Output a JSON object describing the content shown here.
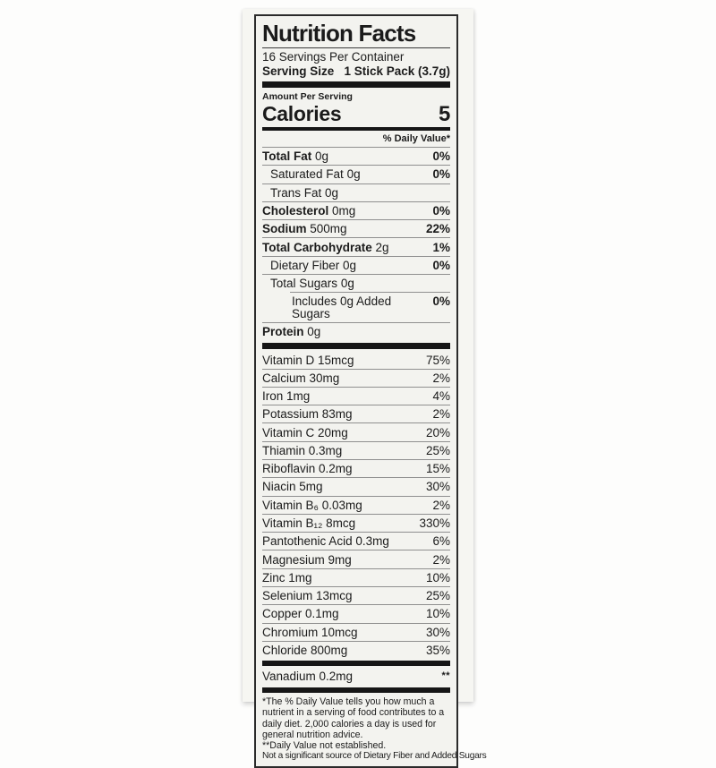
{
  "label": {
    "title": "Nutrition Facts",
    "servings_per_container": "16 Servings Per Container",
    "serving_size_label": "Serving Size",
    "serving_size_value": "1 Stick Pack (3.7g)",
    "amount_per_serving": "Amount Per Serving",
    "calories_label": "Calories",
    "calories_value": "5",
    "daily_value_header": "% Daily Value*",
    "main_rows": [
      {
        "name": "Total Fat",
        "amount": "0g",
        "dv": "0%"
      },
      {
        "name": "Saturated Fat",
        "amount": "0g",
        "dv": "0%"
      },
      {
        "name": "Trans Fat",
        "amount": "0g",
        "dv": ""
      },
      {
        "name": "Cholesterol",
        "amount": "0mg",
        "dv": "0%"
      },
      {
        "name": "Sodium",
        "amount": "500mg",
        "dv": "22%"
      },
      {
        "name": "Total Carbohydrate",
        "amount": "2g",
        "dv": "1%"
      },
      {
        "name": "Dietary Fiber",
        "amount": "0g",
        "dv": "0%"
      },
      {
        "name": "Total Sugars",
        "amount": "0g",
        "dv": ""
      },
      {
        "name": "Includes 0g Added Sugars",
        "amount": "",
        "dv": "0%"
      },
      {
        "name": "Protein",
        "amount": "0g",
        "dv": ""
      }
    ],
    "micro_rows": [
      {
        "name": "Vitamin D 15mcg",
        "dv": "75%"
      },
      {
        "name": "Calcium 30mg",
        "dv": "2%"
      },
      {
        "name": "Iron 1mg",
        "dv": "4%"
      },
      {
        "name": "Potassium 83mg",
        "dv": "2%"
      },
      {
        "name": "Vitamin C 20mg",
        "dv": "20%"
      },
      {
        "name": "Thiamin 0.3mg",
        "dv": "25%"
      },
      {
        "name": "Riboflavin 0.2mg",
        "dv": "15%"
      },
      {
        "name": "Niacin 5mg",
        "dv": "30%"
      },
      {
        "name": "Vitamin B₆ 0.03mg",
        "dv": "2%"
      },
      {
        "name": "Vitamin B₁₂ 8mcg",
        "dv": "330%"
      },
      {
        "name": "Pantothenic Acid 0.3mg",
        "dv": "6%"
      },
      {
        "name": "Magnesium 9mg",
        "dv": "2%"
      },
      {
        "name": "Zinc 1mg",
        "dv": "10%"
      },
      {
        "name": "Selenium 13mcg",
        "dv": "25%"
      },
      {
        "name": "Copper 0.1mg",
        "dv": "10%"
      },
      {
        "name": "Chromium 10mcg",
        "dv": "30%"
      },
      {
        "name": "Chloride 800mg",
        "dv": "35%"
      }
    ],
    "vanadium": {
      "name": "Vanadium 0.2mg",
      "dv": "**"
    },
    "footnotes": [
      "*The % Daily Value tells you how much a nutrient in a serving of food contributes to a daily diet. 2,000 calories a day is used for general nutrition advice.",
      "**Daily Value not established.",
      "Not a significant source of Dietary Fiber and Added Sugars"
    ]
  }
}
